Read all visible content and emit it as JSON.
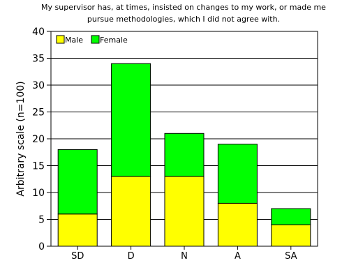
{
  "chart_data": {
    "type": "bar",
    "stacked": true,
    "title_lines": [
      "My supervisor has, at times, insisted on changes to my work, or made me",
      "pursue methodologies, which I did not agree with."
    ],
    "ylabel": "Arbitrary scale (n=100)",
    "xlabel": "",
    "categories": [
      "SD",
      "D",
      "N",
      "A",
      "SA"
    ],
    "ylim": [
      0,
      40
    ],
    "yticks": [
      0,
      5,
      10,
      15,
      20,
      25,
      30,
      35,
      40
    ],
    "grid": true,
    "legend_position": "top-left",
    "series": [
      {
        "name": "Male",
        "color": "#ffff00",
        "values": [
          6,
          13,
          13,
          8,
          4
        ]
      },
      {
        "name": "Female",
        "color": "#00ff00",
        "values": [
          12,
          21,
          8,
          11,
          3
        ]
      }
    ]
  }
}
